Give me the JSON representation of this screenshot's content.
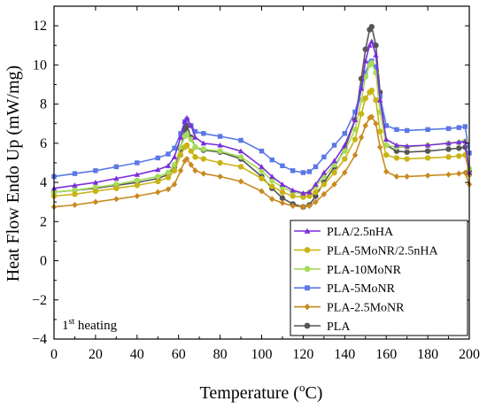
{
  "chart_data": {
    "type": "line",
    "xlabel": "Temperature (",
    "xlabel_deg": "o",
    "xlabel_unit": "C)",
    "ylabel": "Heat Flow Endo Up (mW/mg)",
    "xlim": [
      0,
      200
    ],
    "ylim": [
      -4,
      13
    ],
    "xticks": [
      0,
      20,
      40,
      60,
      80,
      100,
      120,
      140,
      160,
      180,
      200
    ],
    "yticks": [
      -4,
      -2,
      0,
      2,
      4,
      6,
      8,
      10,
      12
    ],
    "grid": false,
    "legend_position": "lower-right",
    "annotation": {
      "main": "1",
      "sup": "st",
      "rest": " heating"
    },
    "series": [
      {
        "name": "PLA/2.5nHA",
        "color": "#7b2fd9",
        "marker": "triangle",
        "x": [
          0,
          10,
          20,
          30,
          40,
          50,
          55,
          58,
          61,
          63,
          64,
          66,
          68,
          72,
          80,
          90,
          100,
          105,
          110,
          115,
          120,
          123,
          126,
          130,
          135,
          140,
          145,
          148,
          150,
          152,
          153,
          155,
          157,
          160,
          165,
          170,
          180,
          190,
          195,
          198,
          200
        ],
        "y": [
          3.7,
          3.85,
          4.0,
          4.2,
          4.4,
          4.65,
          4.85,
          5.3,
          6.3,
          7.1,
          7.3,
          6.9,
          6.3,
          6.0,
          5.9,
          5.6,
          4.8,
          4.3,
          3.9,
          3.6,
          3.45,
          3.5,
          3.9,
          4.5,
          5.1,
          5.9,
          7.2,
          8.8,
          10.2,
          11.0,
          11.2,
          10.5,
          8.2,
          6.2,
          5.9,
          5.85,
          5.9,
          6.0,
          6.05,
          6.1,
          4.5
        ]
      },
      {
        "name": "PLA-5MoNR/2.5nHA",
        "color": "#c9b416",
        "marker": "circle",
        "x": [
          0,
          10,
          20,
          30,
          40,
          50,
          55,
          58,
          61,
          63,
          64,
          66,
          68,
          72,
          80,
          90,
          100,
          105,
          110,
          115,
          120,
          123,
          126,
          130,
          135,
          140,
          145,
          148,
          150,
          152,
          153,
          155,
          157,
          160,
          165,
          170,
          180,
          190,
          195,
          198,
          200
        ],
        "y": [
          3.3,
          3.4,
          3.55,
          3.7,
          3.85,
          4.05,
          4.25,
          4.6,
          5.4,
          5.8,
          5.9,
          5.6,
          5.3,
          5.2,
          5.0,
          4.8,
          4.2,
          3.8,
          3.5,
          3.3,
          3.25,
          3.3,
          3.5,
          3.9,
          4.5,
          5.2,
          6.2,
          7.5,
          8.3,
          8.6,
          8.7,
          8.2,
          6.6,
          5.4,
          5.25,
          5.2,
          5.25,
          5.3,
          5.35,
          5.4,
          4.4
        ]
      },
      {
        "name": "PLA-10MoNR",
        "color": "#a5dc5b",
        "marker": "circle",
        "x": [
          0,
          10,
          20,
          30,
          40,
          50,
          55,
          58,
          61,
          63,
          64,
          66,
          68,
          72,
          80,
          90,
          100,
          105,
          110,
          115,
          120,
          123,
          126,
          130,
          135,
          140,
          145,
          148,
          150,
          152,
          153,
          155,
          157,
          160,
          165,
          170,
          180,
          190,
          195,
          198,
          200
        ],
        "y": [
          3.5,
          3.6,
          3.75,
          3.9,
          4.1,
          4.3,
          4.5,
          4.9,
          5.8,
          6.35,
          6.45,
          6.2,
          5.8,
          5.7,
          5.6,
          5.3,
          4.6,
          4.1,
          3.75,
          3.5,
          3.4,
          3.5,
          3.8,
          4.3,
          4.9,
          5.6,
          6.7,
          8.2,
          9.4,
          10.0,
          10.1,
          9.6,
          7.6,
          5.9,
          5.8,
          5.8,
          5.9,
          6.0,
          6.05,
          6.1,
          4.7
        ]
      },
      {
        "name": "PLA-5MoNR",
        "color": "#5a78e6",
        "marker": "square",
        "x": [
          0,
          10,
          20,
          30,
          40,
          50,
          55,
          58,
          61,
          63,
          64,
          66,
          68,
          72,
          80,
          90,
          100,
          105,
          110,
          115,
          120,
          123,
          126,
          130,
          135,
          140,
          145,
          148,
          150,
          152,
          153,
          155,
          157,
          160,
          165,
          170,
          180,
          190,
          195,
          198,
          200
        ],
        "y": [
          4.3,
          4.45,
          4.6,
          4.8,
          5.0,
          5.25,
          5.45,
          5.75,
          6.5,
          7.1,
          7.2,
          6.9,
          6.6,
          6.5,
          6.35,
          6.15,
          5.6,
          5.15,
          4.85,
          4.6,
          4.5,
          4.55,
          4.8,
          5.3,
          5.9,
          6.5,
          7.6,
          8.8,
          9.6,
          10.1,
          10.2,
          9.9,
          8.4,
          6.9,
          6.7,
          6.65,
          6.7,
          6.75,
          6.8,
          6.85,
          5.5
        ]
      },
      {
        "name": "PLA-2.5MoNR",
        "color": "#c88a1f",
        "marker": "diamond",
        "x": [
          0,
          10,
          20,
          30,
          40,
          50,
          55,
          58,
          61,
          63,
          64,
          66,
          68,
          72,
          80,
          90,
          100,
          105,
          110,
          115,
          120,
          123,
          126,
          130,
          135,
          140,
          145,
          148,
          150,
          152,
          153,
          155,
          157,
          160,
          165,
          170,
          180,
          190,
          195,
          198,
          200
        ],
        "y": [
          2.75,
          2.85,
          3.0,
          3.15,
          3.3,
          3.5,
          3.65,
          3.9,
          4.6,
          5.1,
          5.2,
          4.9,
          4.6,
          4.45,
          4.3,
          4.05,
          3.55,
          3.15,
          2.95,
          2.8,
          2.75,
          2.8,
          3.0,
          3.4,
          3.9,
          4.5,
          5.4,
          6.3,
          6.9,
          7.3,
          7.35,
          7.0,
          5.8,
          4.55,
          4.3,
          4.3,
          4.35,
          4.4,
          4.45,
          4.5,
          3.9
        ]
      },
      {
        "name": "PLA",
        "color": "#555555",
        "marker": "circle",
        "x": [
          0,
          10,
          20,
          30,
          40,
          50,
          55,
          58,
          61,
          63,
          64,
          66,
          68,
          72,
          80,
          90,
          100,
          105,
          110,
          115,
          120,
          123,
          126,
          130,
          135,
          140,
          145,
          148,
          150,
          152,
          153,
          155,
          157,
          160,
          165,
          170,
          180,
          190,
          195,
          198,
          200
        ],
        "y": [
          3.5,
          3.6,
          3.7,
          3.85,
          4.0,
          4.2,
          4.4,
          4.8,
          5.7,
          6.7,
          6.9,
          6.3,
          5.8,
          5.65,
          5.55,
          5.2,
          4.3,
          3.7,
          3.2,
          2.9,
          2.75,
          2.85,
          3.3,
          4.0,
          4.8,
          5.7,
          7.2,
          9.3,
          10.8,
          11.8,
          11.95,
          11.0,
          8.6,
          5.9,
          5.6,
          5.55,
          5.6,
          5.7,
          5.75,
          5.8,
          4.6
        ]
      }
    ]
  }
}
